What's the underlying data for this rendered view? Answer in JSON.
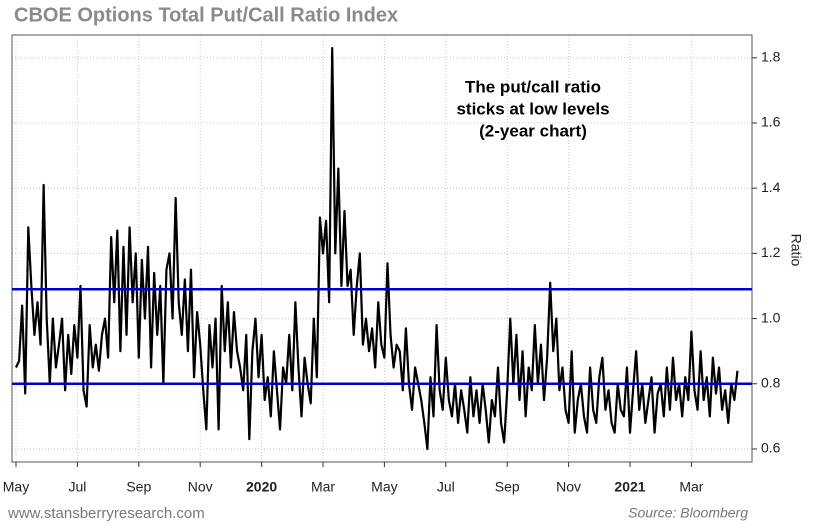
{
  "chart_data": {
    "type": "line",
    "title": "CBOE Options Total Put/Call Ratio Index",
    "annotation": [
      "The put/call ratio",
      "sticks at low levels",
      "(2-year chart)"
    ],
    "y_label": "Ratio",
    "footer": "www.stansberryresearch.com",
    "source": "Source: Bloomberg",
    "categories": [
      "May",
      null,
      null,
      null,
      null,
      null,
      null,
      null,
      null,
      null,
      null,
      null,
      null,
      null,
      null,
      null,
      null,
      null,
      null,
      null,
      "Jul",
      null,
      null,
      null,
      null,
      null,
      null,
      null,
      null,
      null,
      null,
      null,
      null,
      null,
      null,
      null,
      null,
      null,
      null,
      null,
      "Sep",
      null,
      null,
      null,
      null,
      null,
      null,
      null,
      null,
      null,
      null,
      null,
      null,
      null,
      null,
      null,
      null,
      null,
      null,
      null,
      "Nov",
      null,
      null,
      null,
      null,
      null,
      null,
      null,
      null,
      null,
      null,
      null,
      null,
      null,
      null,
      null,
      null,
      null,
      null,
      null,
      "2020",
      null,
      null,
      null,
      null,
      null,
      null,
      null,
      null,
      null,
      null,
      null,
      null,
      null,
      null,
      null,
      null,
      null,
      null,
      null,
      "Mar",
      null,
      null,
      null,
      null,
      null,
      null,
      null,
      null,
      null,
      null,
      null,
      null,
      null,
      null,
      null,
      null,
      null,
      null,
      null,
      "May",
      null,
      null,
      null,
      null,
      null,
      null,
      null,
      null,
      null,
      null,
      null,
      null,
      null,
      null,
      null,
      null,
      null,
      null,
      null,
      "Jul",
      null,
      null,
      null,
      null,
      null,
      null,
      null,
      null,
      null,
      null,
      null,
      null,
      null,
      null,
      null,
      null,
      null,
      null,
      null,
      "Sep",
      null,
      null,
      null,
      null,
      null,
      null,
      null,
      null,
      null,
      null,
      null,
      null,
      null,
      null,
      null,
      null,
      null,
      null,
      null,
      "Nov",
      null,
      null,
      null,
      null,
      null,
      null,
      null,
      null,
      null,
      null,
      null,
      null,
      null,
      null,
      null,
      null,
      null,
      null,
      null,
      "2021",
      null,
      null,
      null,
      null,
      null,
      null,
      null,
      null,
      null,
      null,
      null,
      null,
      null,
      null,
      null,
      null,
      null,
      null,
      null,
      "Mar",
      null,
      null,
      null,
      null,
      null,
      null,
      null,
      null,
      null,
      null,
      null,
      null,
      null,
      null,
      null
    ],
    "series": [
      {
        "name": "Put/Call Ratio",
        "color": "#000000",
        "values": [
          0.85,
          0.87,
          1.04,
          0.77,
          1.28,
          1.1,
          0.95,
          1.05,
          0.92,
          1.41,
          1.0,
          0.8,
          1.0,
          0.85,
          0.92,
          1.0,
          0.78,
          0.95,
          0.83,
          0.98,
          0.88,
          1.1,
          0.78,
          0.73,
          0.98,
          0.85,
          0.92,
          0.84,
          0.95,
          1.0,
          0.88,
          1.25,
          1.05,
          1.27,
          0.9,
          1.22,
          0.95,
          1.28,
          1.05,
          1.2,
          0.88,
          1.18,
          1.0,
          1.22,
          0.85,
          1.14,
          0.95,
          1.1,
          0.8,
          1.15,
          1.2,
          1.0,
          1.37,
          1.05,
          0.95,
          1.12,
          0.9,
          1.15,
          0.82,
          1.02,
          0.92,
          0.78,
          0.66,
          0.98,
          0.85,
          1.0,
          0.66,
          1.1,
          0.9,
          1.05,
          0.85,
          1.02,
          0.9,
          0.85,
          0.78,
          0.95,
          0.63,
          0.9,
          1.0,
          0.82,
          0.95,
          0.75,
          0.82,
          0.7,
          0.9,
          0.78,
          0.66,
          0.85,
          0.8,
          0.95,
          0.78,
          1.05,
          0.85,
          0.7,
          0.88,
          0.8,
          0.74,
          1.0,
          0.82,
          1.31,
          1.2,
          1.3,
          1.05,
          1.83,
          1.2,
          1.46,
          1.1,
          1.33,
          1.1,
          1.15,
          0.95,
          1.1,
          1.2,
          0.92,
          1.0,
          0.9,
          0.97,
          0.85,
          1.05,
          0.92,
          0.88,
          1.17,
          0.95,
          0.85,
          0.92,
          0.9,
          0.78,
          0.97,
          0.8,
          0.72,
          0.85,
          0.8,
          0.75,
          0.68,
          0.6,
          0.82,
          0.7,
          0.98,
          0.78,
          0.72,
          0.88,
          0.75,
          0.7,
          0.8,
          0.68,
          0.78,
          0.72,
          0.65,
          0.82,
          0.7,
          0.78,
          0.68,
          0.8,
          0.72,
          0.62,
          0.75,
          0.7,
          0.85,
          0.68,
          0.62,
          0.78,
          1.0,
          0.8,
          0.95,
          0.75,
          0.9,
          0.7,
          0.85,
          0.78,
          0.98,
          0.8,
          0.92,
          0.75,
          0.88,
          1.11,
          0.9,
          1.0,
          0.78,
          0.85,
          0.72,
          0.68,
          0.9,
          0.65,
          0.75,
          0.8,
          0.7,
          0.65,
          0.85,
          0.72,
          0.68,
          0.82,
          0.88,
          0.72,
          0.78,
          0.68,
          0.65,
          0.8,
          0.72,
          0.7,
          0.85,
          0.65,
          0.78,
          0.9,
          0.72,
          0.8,
          0.68,
          0.75,
          0.82,
          0.65,
          0.77,
          0.8,
          0.7,
          0.85,
          0.72,
          0.88,
          0.75,
          0.8,
          0.7,
          0.82,
          0.75,
          0.96,
          0.78,
          0.72,
          0.9,
          0.75,
          0.82,
          0.7,
          0.88,
          0.77,
          0.85,
          0.72,
          0.78,
          0.68,
          0.8,
          0.75,
          0.84
        ]
      }
    ],
    "reference_lines": [
      {
        "value": 1.09,
        "color": "#0000cc"
      },
      {
        "value": 0.8,
        "color": "#0000cc"
      }
    ],
    "ylim": [
      0.56,
      1.87
    ],
    "yticks": [
      0.6,
      0.8,
      {
        "value": 1,
        "label": "1.0"
      },
      1.2,
      1.4,
      1.6,
      1.8
    ],
    "grid": true
  }
}
